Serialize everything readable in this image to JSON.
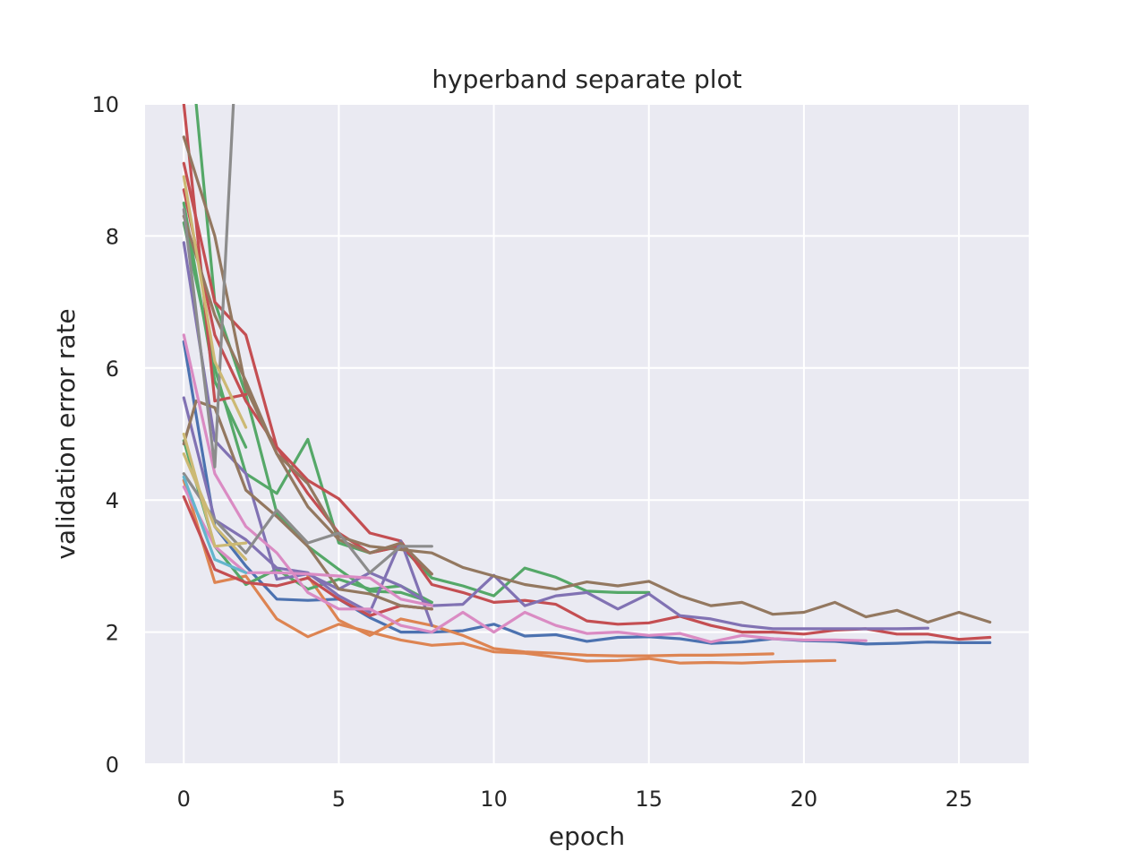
{
  "chart_data": {
    "type": "line",
    "title": "hyperband separate plot",
    "xlabel": "epoch",
    "ylabel": "validation error rate",
    "xlim": [
      -1.25,
      27.25
    ],
    "ylim": [
      0,
      10
    ],
    "xticks": [
      0,
      5,
      10,
      15,
      20,
      25
    ],
    "yticks": [
      0,
      2,
      4,
      6,
      8,
      10
    ],
    "grid": true,
    "background": "#eaeaf2",
    "grid_color": "#ffffff",
    "series": [
      {
        "color": "#4c72b0",
        "x": [
          0,
          1,
          2,
          3,
          4,
          5,
          6,
          7,
          8,
          9,
          10,
          11,
          12,
          13,
          14,
          15,
          16,
          17,
          18,
          19,
          20,
          21,
          22,
          23,
          24,
          25,
          26
        ],
        "y": [
          6.4,
          3.6,
          3.0,
          2.5,
          2.48,
          2.5,
          2.22,
          2.0,
          2.0,
          2.02,
          2.12,
          1.94,
          1.96,
          1.86,
          1.92,
          1.93,
          1.9,
          1.83,
          1.85,
          1.9,
          1.87,
          1.86,
          1.82,
          1.83,
          1.85,
          1.84,
          1.84
        ]
      },
      {
        "color": "#dd8452",
        "x": [
          0,
          1,
          2,
          3,
          4,
          5,
          6,
          7,
          8,
          9,
          10,
          11,
          12,
          13,
          14,
          15,
          16,
          17,
          18,
          19,
          20,
          21
        ],
        "y": [
          4.3,
          2.75,
          2.85,
          2.2,
          1.93,
          2.12,
          2.0,
          1.88,
          1.8,
          1.83,
          1.7,
          1.68,
          1.62,
          1.56,
          1.57,
          1.6,
          1.53,
          1.54,
          1.53,
          1.55,
          1.56,
          1.57
        ]
      },
      {
        "color": "#dd8452",
        "x": [
          4,
          5,
          6,
          7,
          8,
          9,
          10,
          11,
          12,
          13,
          14,
          15,
          16,
          17,
          18,
          19
        ],
        "y": [
          2.85,
          2.18,
          1.95,
          2.2,
          2.1,
          1.95,
          1.75,
          1.7,
          1.68,
          1.65,
          1.64,
          1.64,
          1.65,
          1.65,
          1.66,
          1.67
        ]
      },
      {
        "color": "#55a868",
        "x": [
          0,
          1,
          2
        ],
        "y": [
          8.5,
          5.8,
          4.8
        ]
      },
      {
        "color": "#55a868",
        "x": [
          0,
          1,
          2,
          3,
          4,
          5,
          6,
          7,
          8,
          9,
          10,
          11,
          12,
          13,
          14,
          15
        ],
        "y": [
          8.2,
          6.0,
          4.4,
          4.1,
          4.92,
          3.35,
          3.2,
          3.3,
          2.82,
          2.7,
          2.55,
          2.97,
          2.83,
          2.62,
          2.6,
          2.6
        ]
      },
      {
        "color": "#55a868",
        "x": [
          0,
          1,
          2,
          3,
          4,
          5,
          6,
          7,
          8
        ],
        "y": [
          4.9,
          3.3,
          2.72,
          2.95,
          2.65,
          2.8,
          2.65,
          2.7,
          2.45
        ]
      },
      {
        "color": "#55a868",
        "x": [
          0.4,
          1,
          2,
          3,
          4,
          5,
          6,
          7,
          8
        ],
        "y": [
          10.0,
          7.0,
          5.6,
          3.8,
          3.3,
          2.95,
          2.62,
          2.6,
          2.45
        ]
      },
      {
        "color": "#c44e52",
        "x": [
          0,
          1,
          2,
          3,
          4,
          5,
          6,
          7,
          8,
          9,
          10,
          11,
          12,
          13,
          14,
          15,
          16,
          17,
          18,
          19,
          20,
          21,
          22,
          23,
          24,
          25,
          26
        ],
        "y": [
          9.1,
          7.0,
          6.5,
          4.8,
          4.3,
          4.02,
          3.5,
          3.38,
          2.72,
          2.6,
          2.45,
          2.48,
          2.42,
          2.17,
          2.12,
          2.14,
          2.24,
          2.1,
          2.0,
          2.0,
          1.97,
          2.03,
          2.05,
          1.97,
          1.97,
          1.89,
          1.92
        ]
      },
      {
        "color": "#c44e52",
        "x": [
          0,
          1,
          2
        ],
        "y": [
          10.0,
          5.5,
          5.6
        ]
      },
      {
        "color": "#c44e52",
        "x": [
          0,
          1,
          2,
          3,
          4,
          5,
          6,
          7,
          8
        ],
        "y": [
          8.7,
          6.5,
          5.5,
          4.8,
          4.1,
          3.5,
          3.2,
          3.3,
          2.88
        ]
      },
      {
        "color": "#c44e52",
        "x": [
          0,
          1,
          2,
          3,
          4,
          5,
          6,
          7,
          8
        ],
        "y": [
          4.05,
          2.95,
          2.75,
          2.7,
          2.82,
          2.5,
          2.25,
          2.4,
          2.35
        ]
      },
      {
        "color": "#8172b3",
        "x": [
          0,
          1,
          2,
          3,
          4,
          5,
          6,
          7,
          8,
          9,
          10,
          11,
          12,
          13,
          14,
          15,
          16,
          17,
          18,
          19,
          20,
          21,
          22,
          23,
          24
        ],
        "y": [
          7.9,
          4.9,
          4.4,
          2.8,
          2.88,
          2.65,
          2.9,
          2.7,
          2.4,
          2.42,
          2.86,
          2.4,
          2.55,
          2.6,
          2.35,
          2.58,
          2.25,
          2.2,
          2.1,
          2.05,
          2.05,
          2.05,
          2.05,
          2.05,
          2.06
        ]
      },
      {
        "color": "#8172b3",
        "x": [
          0,
          1,
          2,
          3,
          4,
          5,
          6,
          7,
          8
        ],
        "y": [
          5.55,
          3.7,
          3.4,
          2.97,
          2.9,
          2.55,
          2.3,
          3.38,
          2.1
        ]
      },
      {
        "color": "#937860",
        "x": [
          0,
          1,
          2,
          3,
          4,
          5,
          6,
          7,
          8,
          9,
          10,
          11,
          12,
          13,
          14,
          15,
          16,
          17,
          18,
          19,
          20,
          21,
          22,
          23,
          24,
          25,
          26
        ],
        "y": [
          9.5,
          8.0,
          5.7,
          4.7,
          4.25,
          3.45,
          3.3,
          3.25,
          3.2,
          2.98,
          2.85,
          2.72,
          2.65,
          2.76,
          2.7,
          2.77,
          2.55,
          2.4,
          2.45,
          2.27,
          2.3,
          2.45,
          2.23,
          2.33,
          2.15,
          2.3,
          2.15
        ]
      },
      {
        "color": "#937860",
        "x": [
          0,
          0.4,
          1,
          2,
          3,
          4,
          5,
          6,
          7,
          8
        ],
        "y": [
          4.85,
          5.5,
          5.4,
          4.15,
          3.75,
          3.3,
          2.65,
          2.58,
          2.4,
          2.35
        ]
      },
      {
        "color": "#937860",
        "x": [
          0,
          1,
          2,
          3,
          4,
          5,
          6,
          7,
          8
        ],
        "y": [
          8.3,
          6.8,
          5.8,
          4.7,
          3.9,
          3.4,
          3.2,
          3.35,
          2.88
        ]
      },
      {
        "color": "#da8bc3",
        "x": [
          0,
          1,
          2,
          3,
          4,
          5,
          6,
          7,
          8,
          9,
          10,
          11,
          12,
          13,
          14,
          15,
          16,
          17,
          18,
          19,
          20,
          21,
          22
        ],
        "y": [
          6.5,
          4.4,
          3.6,
          3.2,
          2.6,
          2.35,
          2.35,
          2.1,
          2.0,
          2.3,
          2.0,
          2.3,
          2.1,
          1.98,
          2.0,
          1.95,
          1.98,
          1.85,
          1.95,
          1.9,
          1.88,
          1.88,
          1.87
        ]
      },
      {
        "color": "#da8bc3",
        "x": [
          0,
          1,
          2,
          3,
          4,
          5,
          6,
          7,
          8
        ],
        "y": [
          4.2,
          3.3,
          2.9,
          2.9,
          2.88,
          2.85,
          2.82,
          2.5,
          2.4
        ]
      },
      {
        "color": "#8c8c8c",
        "x": [
          0,
          1,
          1.6,
          2
        ],
        "y": [
          8.4,
          4.5,
          10.0,
          11.0
        ]
      },
      {
        "color": "#8c8c8c",
        "x": [
          0,
          1,
          2,
          3,
          4,
          5,
          6,
          7,
          8
        ],
        "y": [
          4.4,
          3.7,
          3.2,
          3.85,
          3.35,
          3.5,
          2.9,
          3.3,
          3.3
        ]
      },
      {
        "color": "#ccb974",
        "x": [
          0,
          1,
          2
        ],
        "y": [
          8.9,
          6.1,
          5.1
        ]
      },
      {
        "color": "#ccb974",
        "x": [
          0,
          1,
          2
        ],
        "y": [
          5.0,
          3.3,
          3.35
        ]
      },
      {
        "color": "#ccb974",
        "x": [
          0,
          1,
          2
        ],
        "y": [
          4.7,
          3.6,
          3.1
        ]
      },
      {
        "color": "#64b5cd",
        "x": [
          0,
          1,
          2
        ],
        "y": [
          4.35,
          3.1,
          2.9
        ]
      }
    ]
  }
}
